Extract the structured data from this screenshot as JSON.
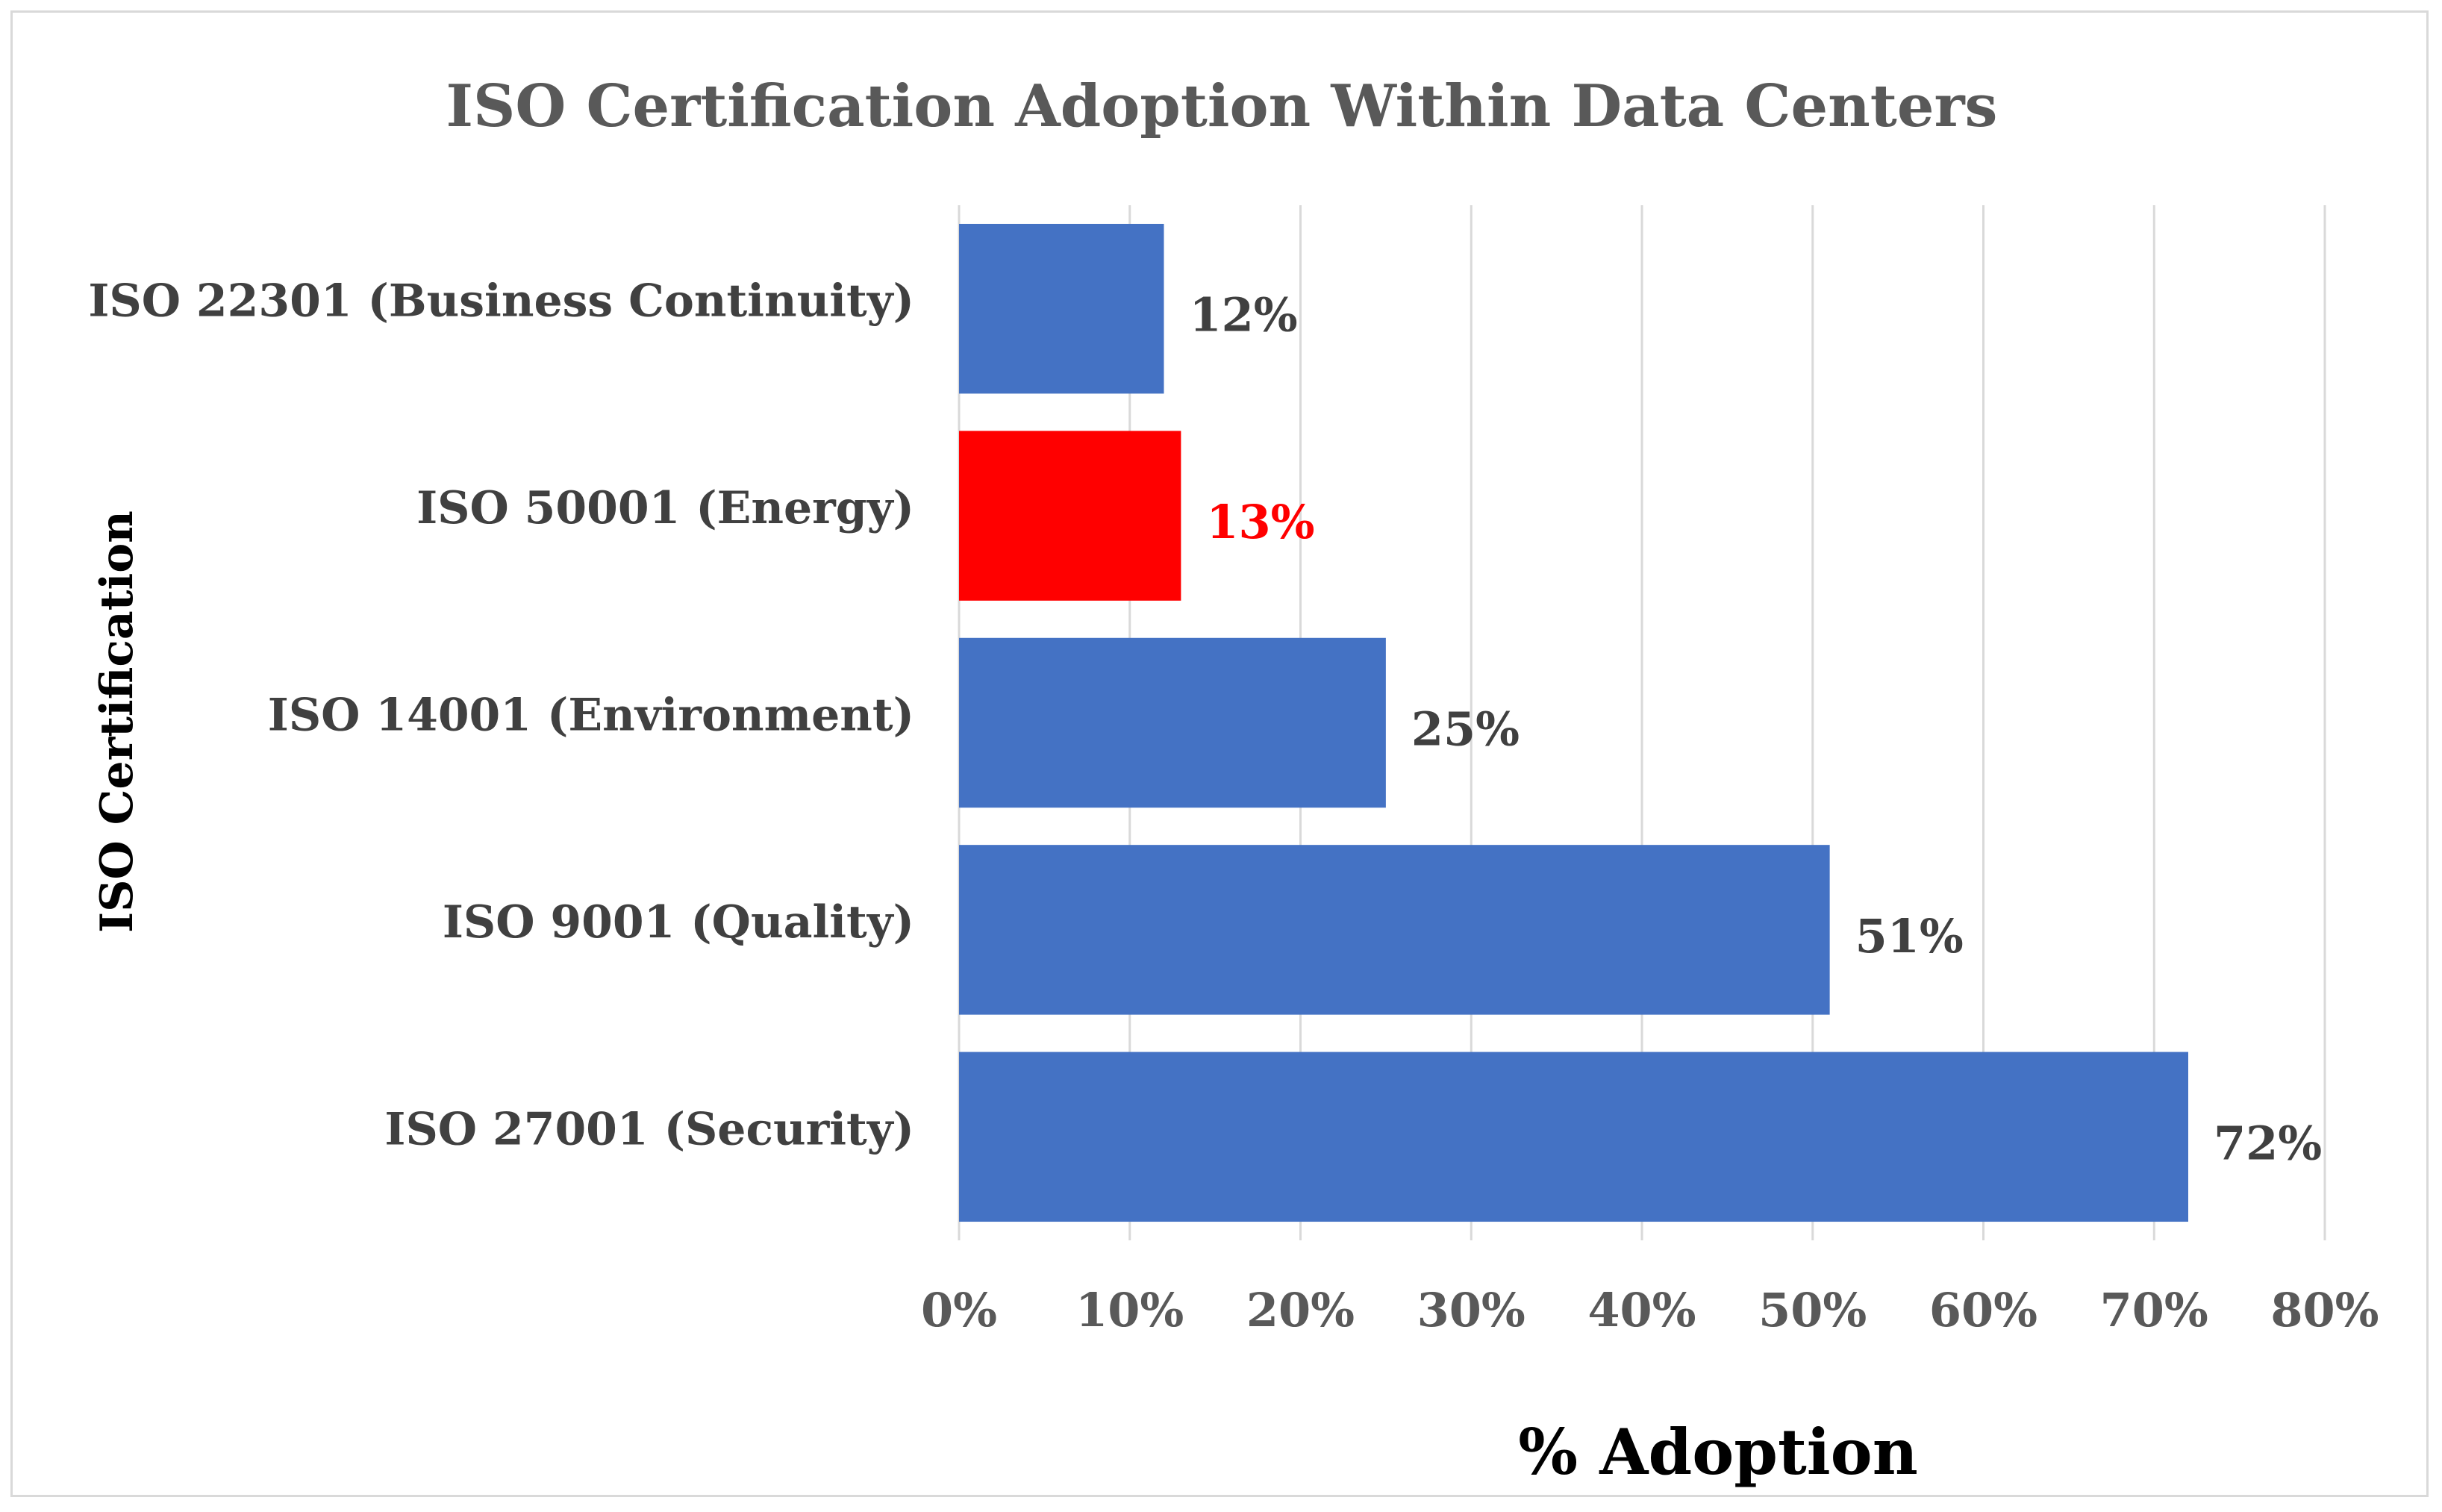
{
  "chart_data": {
    "type": "bar",
    "orientation": "horizontal",
    "title": "ISO Certification Adoption Within Data Centers",
    "xlabel": "% Adoption",
    "ylabel": "ISO Certification",
    "categories": [
      "ISO 22301 (Business Continuity)",
      "ISO 50001 (Energy)",
      "ISO 14001 (Environment)",
      "ISO 9001 (Quality)",
      "ISO 27001 (Security)"
    ],
    "values": [
      12,
      13,
      25,
      51,
      72
    ],
    "value_labels": [
      "12%",
      "13%",
      "25%",
      "51%",
      "72%"
    ],
    "bar_colors": [
      "#4472c4",
      "#ff0000",
      "#4472c4",
      "#4472c4",
      "#4472c4"
    ],
    "label_colors": [
      "#404040",
      "#ff0000",
      "#404040",
      "#404040",
      "#404040"
    ],
    "xlim": [
      0,
      80
    ],
    "x_ticks": [
      0,
      10,
      20,
      30,
      40,
      50,
      60,
      70,
      80
    ],
    "x_tick_labels": [
      "0%",
      "10%",
      "20%",
      "30%",
      "40%",
      "50%",
      "60%",
      "70%",
      "80%"
    ],
    "grid": true,
    "grid_color": "#d9d9d9",
    "legend": "none"
  }
}
